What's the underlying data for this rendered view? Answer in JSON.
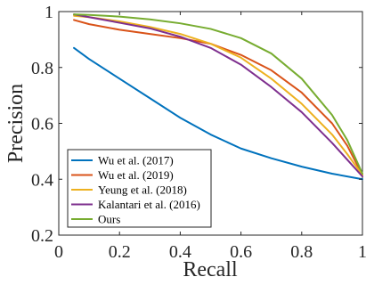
{
  "chart_data": {
    "type": "line",
    "title": "",
    "xlabel": "Recall",
    "ylabel": "Precision",
    "xlim": [
      0,
      1
    ],
    "ylim": [
      0.2,
      1
    ],
    "xticks": [
      0,
      0.2,
      0.4,
      0.6,
      0.8,
      1
    ],
    "xtick_labels": [
      "0",
      "0.2",
      "0.4",
      "0.6",
      "0.8",
      "1"
    ],
    "yticks": [
      0.2,
      0.4,
      0.6,
      0.8,
      1
    ],
    "ytick_labels": [
      "0.2",
      "0.4",
      "0.6",
      "0.8",
      "1"
    ],
    "grid": false,
    "legend_position": "bottom-left",
    "series": [
      {
        "name": "Wu et al. (2017)",
        "color": "#0072BD",
        "x": [
          0.05,
          0.1,
          0.2,
          0.3,
          0.4,
          0.5,
          0.6,
          0.7,
          0.8,
          0.9,
          1.0
        ],
        "y": [
          0.87,
          0.83,
          0.76,
          0.69,
          0.62,
          0.56,
          0.51,
          0.475,
          0.445,
          0.42,
          0.4
        ]
      },
      {
        "name": "Wu et al. (2019)",
        "color": "#D95319",
        "x": [
          0.05,
          0.1,
          0.2,
          0.3,
          0.4,
          0.5,
          0.6,
          0.7,
          0.8,
          0.9,
          0.95,
          1.0
        ],
        "y": [
          0.97,
          0.955,
          0.935,
          0.92,
          0.905,
          0.885,
          0.845,
          0.79,
          0.71,
          0.6,
          0.52,
          0.415
        ]
      },
      {
        "name": "Yeung et al. (2018)",
        "color": "#EDB120",
        "x": [
          0.05,
          0.1,
          0.2,
          0.3,
          0.4,
          0.5,
          0.6,
          0.7,
          0.8,
          0.9,
          0.95,
          1.0
        ],
        "y": [
          0.985,
          0.98,
          0.965,
          0.945,
          0.92,
          0.885,
          0.835,
          0.76,
          0.67,
          0.56,
          0.49,
          0.415
        ]
      },
      {
        "name": "Kalantari et al. (2016)",
        "color": "#7E2F8E",
        "x": [
          0.05,
          0.1,
          0.2,
          0.3,
          0.4,
          0.5,
          0.6,
          0.7,
          0.8,
          0.9,
          0.95,
          1.0
        ],
        "y": [
          0.99,
          0.98,
          0.96,
          0.94,
          0.91,
          0.87,
          0.81,
          0.73,
          0.64,
          0.53,
          0.47,
          0.41
        ]
      },
      {
        "name": "Ours",
        "color": "#77AC30",
        "x": [
          0.05,
          0.1,
          0.2,
          0.3,
          0.4,
          0.5,
          0.6,
          0.7,
          0.8,
          0.9,
          0.95,
          1.0
        ],
        "y": [
          0.99,
          0.988,
          0.982,
          0.972,
          0.958,
          0.938,
          0.905,
          0.85,
          0.76,
          0.63,
          0.54,
          0.42
        ]
      }
    ]
  }
}
